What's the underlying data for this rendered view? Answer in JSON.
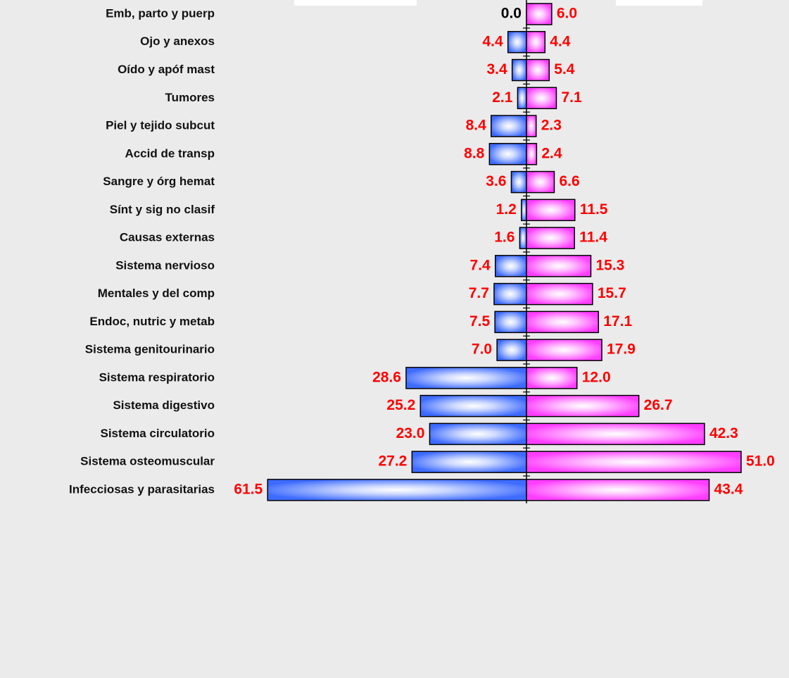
{
  "chart_data": {
    "type": "butterfly",
    "categories": [
      "Emb, parto y puerp",
      "Ojo y anexos",
      "Oído y apóf mast",
      "Tumores",
      "Piel y tejido subcut",
      "Accid de transp",
      "Sangre y órg hemat",
      "Sínt y sig no clasif",
      "Causas externas",
      "Sistema nervioso",
      "Mentales y del comp",
      "Endoc, nutric y metab",
      "Sistema genitourinario",
      "Sistema respiratorio",
      "Sistema digestivo",
      "Sistema circulatorio",
      "Sistema osteomuscular",
      "Infecciosas y parasitarias"
    ],
    "series": [
      {
        "color": "#3d6bff",
        "side": "left",
        "values": [
          0.0,
          4.4,
          3.4,
          2.1,
          8.4,
          8.8,
          3.6,
          1.2,
          1.6,
          7.4,
          7.7,
          7.5,
          7.0,
          28.6,
          25.2,
          23.0,
          27.2,
          61.5
        ],
        "value_labels": [
          "0.0",
          "4.4",
          "3.4",
          "2.1",
          "8.4",
          "8.8",
          "3.6",
          "1.2",
          "1.6",
          "7.4",
          "7.7",
          "7.5",
          "7.0",
          "28.6",
          "25.2",
          "23.0",
          "27.2",
          "61.5"
        ]
      },
      {
        "color": "#ff3dff",
        "side": "right",
        "values": [
          6.0,
          4.4,
          5.4,
          7.1,
          2.3,
          2.4,
          6.6,
          11.5,
          11.4,
          15.3,
          15.7,
          17.1,
          17.9,
          12.0,
          26.7,
          42.3,
          51.0,
          43.4
        ],
        "value_labels": [
          "6.0",
          "4.4",
          "5.4",
          "7.1",
          "2.3",
          "2.4",
          "6.6",
          "11.5",
          "11.4",
          "15.3",
          "15.7",
          "17.1",
          "17.9",
          "12.0",
          "26.7",
          "42.3",
          "51.0",
          "43.4"
        ]
      }
    ],
    "label_color": "#ff0000"
  }
}
